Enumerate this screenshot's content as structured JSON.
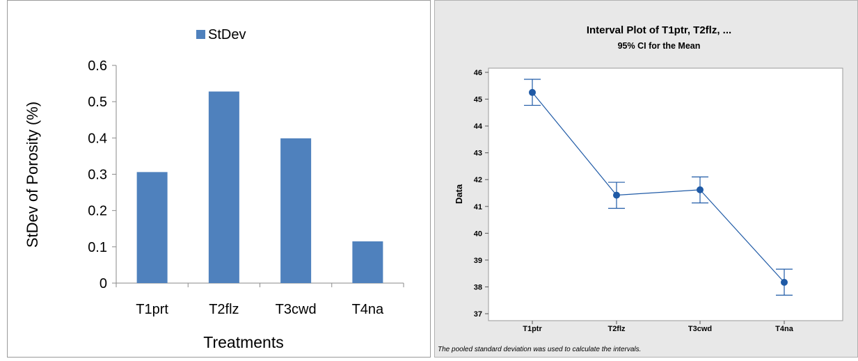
{
  "chart_data": [
    {
      "type": "bar",
      "title": "",
      "legend": {
        "position": "top",
        "entries": [
          "StDev"
        ]
      },
      "categories": [
        "T1prt",
        "T2flz",
        "T3cwd",
        "T4na"
      ],
      "series": [
        {
          "name": "StDev",
          "values": [
            0.306,
            0.528,
            0.399,
            0.115
          ]
        }
      ],
      "xlabel": "Treatments",
      "ylabel": "StDev of Porosity (%)",
      "ylim": [
        0,
        0.6
      ],
      "yticks": [
        "0",
        "0.1",
        "0.2",
        "0.3",
        "0.4",
        "0.5",
        "0.6"
      ],
      "grid": false,
      "colors": {
        "bar": "#4f81bd"
      }
    },
    {
      "type": "interval",
      "title": "Interval Plot of T1ptr, T2flz, ...",
      "subtitle": "95% CI for the Mean",
      "categories": [
        "T1ptr",
        "T2flz",
        "T3cwd",
        "T4na"
      ],
      "means": [
        45.25,
        41.42,
        41.62,
        38.17
      ],
      "ci_lower": [
        44.77,
        40.93,
        41.13,
        37.69
      ],
      "ci_upper": [
        45.74,
        41.9,
        42.1,
        38.66
      ],
      "ylabel": "Data",
      "xlabel": "",
      "ylim": [
        37,
        46
      ],
      "yticks": [
        "37",
        "38",
        "39",
        "40",
        "41",
        "42",
        "43",
        "44",
        "45",
        "46"
      ],
      "footnote": "The pooled standard deviation was used to calculate the intervals.",
      "grid": false,
      "colors": {
        "line": "#1f5aa6",
        "background": "#e8e8e8",
        "plot": "#ffffff"
      }
    }
  ]
}
